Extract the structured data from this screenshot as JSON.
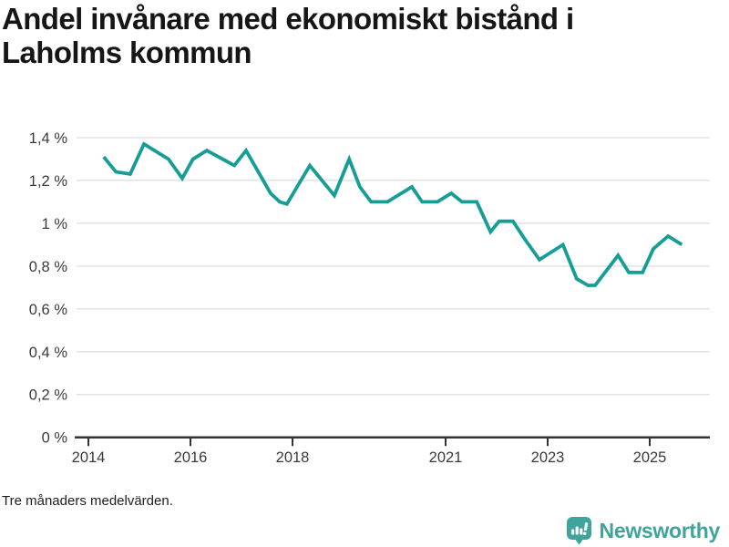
{
  "header": {
    "title": "Andel invånare med ekonomiskt bistånd i Laholms kommun"
  },
  "footer": {
    "note": "Tre månaders medelvärden.",
    "brand": "Newsworthy"
  },
  "colors": {
    "line": "#169e96",
    "grid": "#e3e3e3",
    "axis": "#333333",
    "tick_label": "#3a3a3a",
    "title_text": "#161616",
    "brand_teal": "#3fa49b"
  },
  "icons": {
    "logo_icon": "newsworthy-bar-chart-bubble-icon"
  },
  "chart_data": {
    "type": "line",
    "title": "Andel invånare med ekonomiskt bistånd i Laholms kommun",
    "subtitle": "Tre månaders medelvärden.",
    "xlabel": "",
    "ylabel": "",
    "x_unit": "decimal_year",
    "y_unit": "percent",
    "xlim": [
      2013.77,
      2026.2
    ],
    "ylim": [
      0,
      1.4
    ],
    "grid": true,
    "legend": false,
    "y_ticks": [
      {
        "value": 0,
        "label": "0 %"
      },
      {
        "value": 0.2,
        "label": "0,2 %"
      },
      {
        "value": 0.4,
        "label": "0,4 %"
      },
      {
        "value": 0.6,
        "label": "0,6 %"
      },
      {
        "value": 0.8,
        "label": "0,8 %"
      },
      {
        "value": 1.0,
        "label": "1 %"
      },
      {
        "value": 1.2,
        "label": "1,2 %"
      },
      {
        "value": 1.4,
        "label": "1,4 %"
      }
    ],
    "x_ticks": [
      {
        "value": 2014,
        "label": "2014"
      },
      {
        "value": 2016,
        "label": "2016"
      },
      {
        "value": 2018,
        "label": "2018"
      },
      {
        "value": 2021,
        "label": "2021"
      },
      {
        "value": 2023,
        "label": "2023"
      },
      {
        "value": 2025,
        "label": "2025"
      }
    ],
    "series": [
      {
        "name": "Andel invånare med ekonomiskt bistånd",
        "color": "#169e96",
        "points": [
          [
            2014.3,
            1.31
          ],
          [
            2014.54,
            1.24
          ],
          [
            2014.82,
            1.23
          ],
          [
            2015.09,
            1.37
          ],
          [
            2015.57,
            1.3
          ],
          [
            2015.84,
            1.21
          ],
          [
            2016.05,
            1.3
          ],
          [
            2016.32,
            1.34
          ],
          [
            2016.86,
            1.27
          ],
          [
            2017.09,
            1.34
          ],
          [
            2017.57,
            1.14
          ],
          [
            2017.75,
            1.1
          ],
          [
            2017.89,
            1.09
          ],
          [
            2018.34,
            1.27
          ],
          [
            2018.82,
            1.13
          ],
          [
            2019.11,
            1.3
          ],
          [
            2019.32,
            1.17
          ],
          [
            2019.54,
            1.1
          ],
          [
            2019.86,
            1.1
          ],
          [
            2020.34,
            1.17
          ],
          [
            2020.54,
            1.1
          ],
          [
            2020.84,
            1.1
          ],
          [
            2021.11,
            1.14
          ],
          [
            2021.32,
            1.1
          ],
          [
            2021.61,
            1.1
          ],
          [
            2021.88,
            0.96
          ],
          [
            2022.05,
            1.01
          ],
          [
            2022.32,
            1.01
          ],
          [
            2022.54,
            0.93
          ],
          [
            2022.84,
            0.83
          ],
          [
            2023.3,
            0.9
          ],
          [
            2023.57,
            0.74
          ],
          [
            2023.79,
            0.71
          ],
          [
            2023.93,
            0.71
          ],
          [
            2024.38,
            0.85
          ],
          [
            2024.59,
            0.77
          ],
          [
            2024.86,
            0.77
          ],
          [
            2025.07,
            0.88
          ],
          [
            2025.36,
            0.94
          ],
          [
            2025.63,
            0.9
          ]
        ]
      }
    ]
  }
}
